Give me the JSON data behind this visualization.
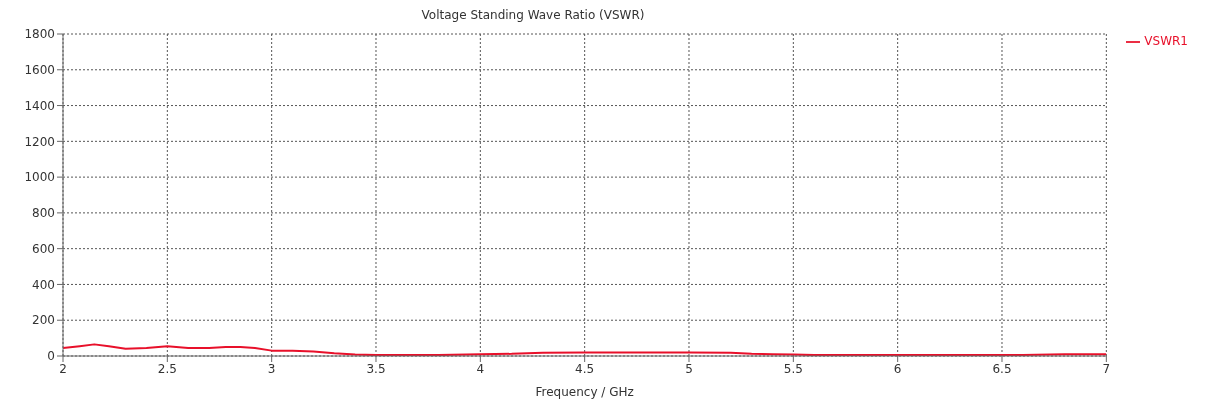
{
  "chart_data": {
    "type": "line",
    "title": "Voltage Standing Wave Ratio (VSWR)",
    "xlabel": "Frequency / GHz",
    "xlim": [
      2,
      7
    ],
    "xticks": [
      2,
      2.5,
      3,
      3.5,
      4,
      4.5,
      5,
      5.5,
      6,
      6.5,
      7
    ],
    "ylim": [
      0,
      1800
    ],
    "yticks": [
      0,
      200,
      400,
      600,
      800,
      1000,
      1200,
      1400,
      1600,
      1800
    ],
    "grid": true,
    "legend": "top right",
    "marker": "none",
    "line_style": "solid",
    "series": [
      {
        "name": "VSWR1",
        "color": "#e8102a",
        "x": [
          2,
          2.08,
          2.15,
          2.22,
          2.3,
          2.4,
          2.5,
          2.6,
          2.7,
          2.78,
          2.85,
          2.92,
          3,
          3.1,
          3.2,
          3.3,
          3.4,
          3.5,
          3.65,
          3.8,
          4,
          4.15,
          4.3,
          4.5,
          4.75,
          5,
          5.2,
          5.3,
          5.4,
          5.5,
          5.6,
          5.8,
          6,
          6.2,
          6.4,
          6.6,
          6.8,
          7
        ],
        "values": [
          45,
          55,
          65,
          55,
          40,
          45,
          55,
          45,
          45,
          50,
          50,
          45,
          30,
          30,
          25,
          15,
          8,
          5,
          5,
          5,
          10,
          12,
          18,
          20,
          20,
          20,
          18,
          12,
          10,
          8,
          5,
          5,
          5,
          6,
          6,
          6,
          10,
          10
        ]
      }
    ]
  }
}
